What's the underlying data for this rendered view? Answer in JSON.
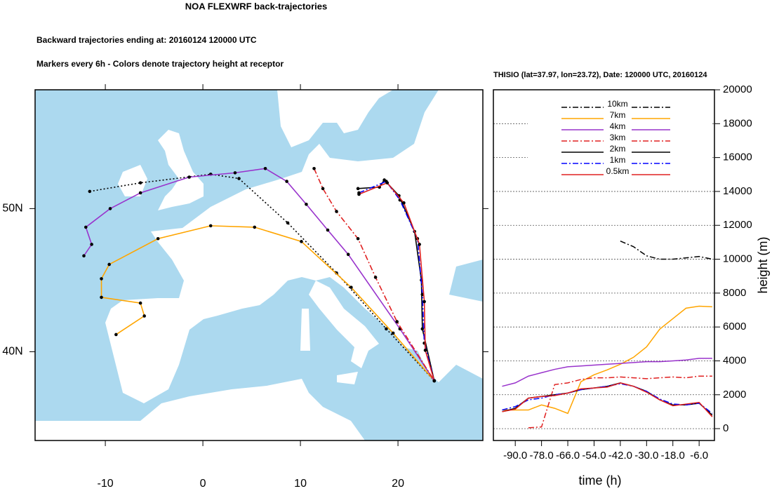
{
  "chart_data": [
    {
      "type": "trajectory-map",
      "title": "NOA FLEXWRF back-trajectories",
      "subtitles": [
        "Backward trajectories ending at: 20160124  120000 UTC",
        "Markers every 6h - Colors denote trajectory height at receptor"
      ],
      "xlim": [
        -17.2,
        28.7
      ],
      "ylim": [
        33.8,
        58.3
      ],
      "xticks": [
        -10,
        0,
        10,
        20
      ],
      "yticks": [
        {
          "value": 40,
          "label": "40N"
        },
        {
          "value": 50,
          "label": "50N"
        }
      ],
      "series": [
        {
          "color": "#000000",
          "style": "dotted",
          "x": [
            -11.6,
            -6.4,
            0.8,
            3.7,
            8.7,
            13.7,
            18.8,
            23.72
          ],
          "values": [
            51.2,
            51.8,
            52.4,
            52.1,
            49.0,
            45.5,
            41.6,
            37.97
          ]
        },
        {
          "color": "#ffa500",
          "style": "solid",
          "x": [
            -8.9,
            -6.0,
            -6.4,
            -10.4,
            -10.4,
            -9.6,
            -4.6,
            0.8,
            5.3,
            10.1,
            15.2,
            19.5,
            23.72
          ],
          "values": [
            41.2,
            42.5,
            43.4,
            43.8,
            45.1,
            46.1,
            47.9,
            48.8,
            48.7,
            47.7,
            44.5,
            41.3,
            37.97
          ]
        },
        {
          "color": "#9933cc",
          "style": "solid",
          "x": [
            -12.2,
            -11.4,
            -12.0,
            -9.5,
            -6.4,
            -1.4,
            3.3,
            6.4,
            8.6,
            10.6,
            12.8,
            14.9,
            20.2,
            23.72
          ],
          "values": [
            46.7,
            47.5,
            48.7,
            50.0,
            51.1,
            52.2,
            52.5,
            52.8,
            51.9,
            50.3,
            48.5,
            46.8,
            41.6,
            37.97
          ]
        },
        {
          "color": "#e02020",
          "style": "dashdot",
          "x": [
            11.4,
            12.3,
            13.7,
            15.9,
            17.7,
            19.9,
            23.72
          ],
          "values": [
            52.8,
            51.4,
            49.8,
            47.9,
            45.2,
            42.1,
            37.97
          ]
        },
        {
          "color": "#000000",
          "style": "solid",
          "x": [
            15.9,
            18.1,
            18.6,
            20.1,
            21.7,
            22.4,
            22.5,
            23.72
          ],
          "values": [
            51.4,
            51.5,
            52.0,
            50.9,
            48.4,
            45.0,
            41.6,
            37.97
          ]
        },
        {
          "color": "#0000ff",
          "style": "dashdot",
          "x": [
            16.0,
            18.8,
            20.2,
            22.0,
            22.5,
            22.7,
            23.72
          ],
          "values": [
            51.1,
            51.9,
            50.6,
            47.9,
            44.0,
            40.6,
            37.97
          ]
        },
        {
          "color": "#e02020",
          "style": "solid",
          "x": [
            16.0,
            18.9,
            20.6,
            22.2,
            22.7,
            22.8,
            23.72
          ],
          "values": [
            51.0,
            51.8,
            50.4,
            47.5,
            43.5,
            40.1,
            37.97
          ]
        }
      ]
    },
    {
      "type": "line",
      "title": "THISIO (lat=37.97,  lon=23.72), Date: 120000 UTC, 20160124",
      "xlabel": "time (h)",
      "ylabel": "height (m)",
      "xlim": [
        -100,
        1
      ],
      "ylim": [
        -700,
        20000
      ],
      "xticks": [
        {
          "value": -90,
          "label": "-90.0"
        },
        {
          "value": -78,
          "label": "-78.0"
        },
        {
          "value": -66,
          "label": "-66.0"
        },
        {
          "value": -54,
          "label": "-54.0"
        },
        {
          "value": -42,
          "label": "-42.0"
        },
        {
          "value": -30,
          "label": "-30.0"
        },
        {
          "value": -18,
          "label": "-18.0"
        },
        {
          "value": -6,
          "label": "-6.0"
        }
      ],
      "yticks": [
        0,
        2000,
        4000,
        6000,
        8000,
        10000,
        12000,
        14000,
        16000,
        18000,
        20000
      ],
      "grid": true,
      "x": [
        -96,
        -90,
        -84,
        -78,
        -72,
        -66,
        -60,
        -54,
        -48,
        -42,
        -36,
        -30,
        -24,
        -18,
        -12,
        -6,
        0
      ],
      "series": [
        {
          "name": "10km",
          "color": "#000000",
          "style": "dashdot",
          "values": [
            null,
            null,
            null,
            null,
            null,
            null,
            null,
            null,
            null,
            11070,
            10740,
            10200,
            10000,
            10000,
            10080,
            10160,
            10000
          ]
        },
        {
          "name": "7km",
          "color": "#ffa500",
          "style": "solid",
          "values": [
            1100,
            1100,
            1100,
            1400,
            1200,
            900,
            2770,
            3180,
            3470,
            3800,
            4210,
            4830,
            5870,
            6490,
            7110,
            7230,
            7190
          ]
        },
        {
          "name": "4km",
          "color": "#9933cc",
          "style": "solid",
          "values": [
            2500,
            2700,
            3100,
            3300,
            3500,
            3650,
            3700,
            3750,
            3800,
            3850,
            3900,
            3950,
            3950,
            4000,
            4050,
            4150,
            4150
          ]
        },
        {
          "name": "3km",
          "color": "#e02020",
          "style": "dashdot",
          "values": [
            null,
            null,
            50,
            100,
            2600,
            2700,
            2900,
            3000,
            3000,
            3050,
            3000,
            2950,
            3000,
            3050,
            3000,
            3100,
            3100
          ]
        },
        {
          "name": "2km",
          "color": "#000000",
          "style": "solid",
          "values": [
            1000,
            1200,
            1800,
            1900,
            2000,
            2100,
            2300,
            2400,
            2500,
            2700,
            2500,
            2200,
            1700,
            1400,
            1400,
            1500,
            800
          ]
        },
        {
          "name": "1km",
          "color": "#0000ff",
          "style": "dashdot",
          "values": [
            1100,
            1300,
            1700,
            1800,
            2000,
            2100,
            2300,
            2400,
            2500,
            2650,
            2500,
            2200,
            1750,
            1450,
            1400,
            1500,
            900
          ]
        },
        {
          "name": "0.5km",
          "color": "#e02020",
          "style": "solid",
          "values": [
            1000,
            1150,
            1800,
            1900,
            1950,
            2100,
            2350,
            2400,
            2450,
            2700,
            2500,
            2150,
            1700,
            1350,
            1450,
            1550,
            700
          ]
        }
      ]
    }
  ]
}
